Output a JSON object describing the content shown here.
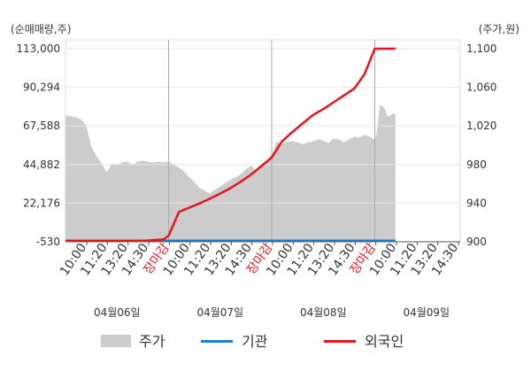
{
  "chart_data": {
    "type": "line",
    "left_axis": {
      "label": "(순매매량,주)",
      "ticks": [
        "113,000",
        "90,294",
        "67,588",
        "44,882",
        "22,176",
        "-530"
      ],
      "ylim": [
        -530,
        113000
      ]
    },
    "right_axis": {
      "label": "(주가,원)",
      "ticks": [
        "1,100",
        "1,060",
        "1,020",
        "980",
        "940",
        "900"
      ],
      "ylim": [
        900,
        1100
      ]
    },
    "x_ticks": [
      {
        "label": "10:00",
        "highlight": false
      },
      {
        "label": "11:20",
        "highlight": false
      },
      {
        "label": "13:20",
        "highlight": false
      },
      {
        "label": "14:30",
        "highlight": false
      },
      {
        "label": "장마감",
        "highlight": true
      },
      {
        "label": "10:00",
        "highlight": false
      },
      {
        "label": "11:20",
        "highlight": false
      },
      {
        "label": "13:20",
        "highlight": false
      },
      {
        "label": "14:30",
        "highlight": false
      },
      {
        "label": "장마감",
        "highlight": true
      },
      {
        "label": "10:00",
        "highlight": false
      },
      {
        "label": "11:20",
        "highlight": false
      },
      {
        "label": "13:20",
        "highlight": false
      },
      {
        "label": "14:30",
        "highlight": false
      },
      {
        "label": "장마감",
        "highlight": true
      },
      {
        "label": "10:00",
        "highlight": false
      },
      {
        "label": "11:20",
        "highlight": false
      },
      {
        "label": "13:20",
        "highlight": false
      },
      {
        "label": "14:30",
        "highlight": false
      }
    ],
    "dates": [
      "04월06일",
      "04월07일",
      "04월08일",
      "04월09일"
    ],
    "grid": true,
    "legend_position": "bottom",
    "series": [
      {
        "name": "주가",
        "axis": "right",
        "style": "area",
        "color": "#cccccc",
        "x": [
          0,
          0.05,
          0.1,
          0.15,
          0.2,
          0.25,
          0.3,
          0.35,
          0.4,
          0.45,
          0.5,
          0.55,
          0.6,
          0.65,
          0.7,
          0.75,
          0.8,
          0.85,
          0.9,
          0.95,
          1,
          1.05,
          1.1,
          1.15,
          1.2,
          1.25,
          1.3,
          1.35,
          1.4,
          1.45,
          1.5,
          1.55,
          1.6,
          1.65,
          1.7,
          1.75,
          1.8,
          1.85,
          1.9,
          1.95,
          2,
          2.05,
          2.1,
          2.15,
          2.2,
          2.25,
          2.3,
          2.35,
          2.4,
          2.45,
          2.5,
          2.55,
          2.6,
          2.65,
          2.7,
          2.75,
          2.8,
          2.85,
          2.9,
          2.95,
          3,
          3.02,
          3.05,
          3.08,
          3.1,
          3.12,
          3.15,
          3.18,
          3.2
        ],
        "values": [
          1031,
          1030,
          1029,
          1027,
          1021,
          999,
          989,
          981,
          972,
          981,
          979,
          982,
          983,
          980,
          983,
          984,
          983,
          982,
          983,
          982,
          983,
          980,
          977,
          973,
          967,
          962,
          956,
          953,
          950,
          954,
          957,
          961,
          964,
          967,
          970,
          975,
          979,
          973,
          979,
          983,
          990,
          1004,
          1001,
          1004,
          1004,
          1003,
          1001,
          1003,
          1004,
          1006,
          1005,
          1002,
          1007,
          1006,
          1003,
          1006,
          1009,
          1008,
          1011,
          1009,
          1006,
          1013,
          1042,
          1040,
          1037,
          1030,
          1031,
          1033,
          1032
        ]
      },
      {
        "name": "기관",
        "axis": "left",
        "style": "line",
        "color": "#1a7fd4",
        "x": [
          0,
          3.2
        ],
        "values": [
          0,
          0
        ]
      },
      {
        "name": "외국인",
        "axis": "left",
        "style": "line",
        "color": "#e8141b",
        "x": [
          0,
          0.5,
          0.75,
          0.95,
          1,
          1.1,
          1.2,
          1.3,
          1.4,
          1.5,
          1.6,
          1.7,
          1.8,
          1.9,
          2,
          2.1,
          2.2,
          2.3,
          2.4,
          2.5,
          2.6,
          2.7,
          2.8,
          2.9,
          3,
          3.2
        ],
        "values": [
          0,
          0,
          0,
          800,
          3000,
          17000,
          19500,
          22000,
          24800,
          27800,
          31000,
          34800,
          39000,
          44000,
          49000,
          58500,
          64000,
          69000,
          74000,
          77500,
          81500,
          85500,
          89500,
          98000,
          113000,
          113000
        ]
      }
    ]
  },
  "legend": {
    "price_label": "주가",
    "institution_label": "기관",
    "foreign_label": "외국인"
  }
}
